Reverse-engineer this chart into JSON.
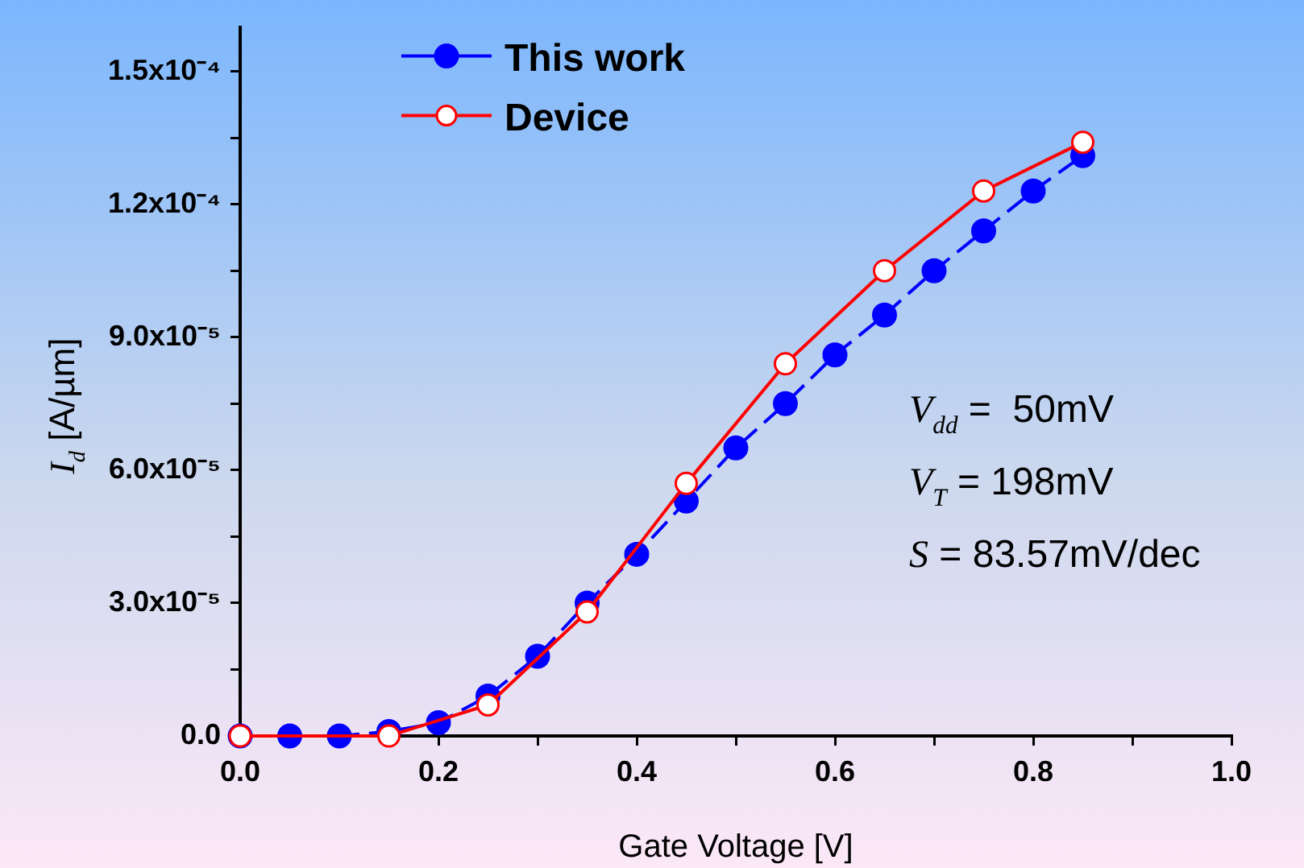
{
  "chart_data": {
    "type": "line",
    "xlabel": "Gate Voltage [V]",
    "ylabel": "I$_{d}$ [A/µm]",
    "xlim": [
      0,
      1
    ],
    "xticks": [
      {
        "value": 0,
        "label": "0.0"
      },
      {
        "value": 0.1,
        "label": null
      },
      {
        "value": 0.2,
        "label": "0.2"
      },
      {
        "value": 0.3,
        "label": null
      },
      {
        "value": 0.4,
        "label": "0.4"
      },
      {
        "value": 0.5,
        "label": null
      },
      {
        "value": 0.6,
        "label": "0.6"
      },
      {
        "value": 0.7,
        "label": null
      },
      {
        "value": 0.8,
        "label": "0.8"
      },
      {
        "value": 0.9,
        "label": null
      },
      {
        "value": 1,
        "label": "1.0"
      }
    ],
    "ylim": [
      0,
      0.00016
    ],
    "yticks": [
      {
        "value": 0,
        "label": "0.0"
      },
      {
        "value": 1.5e-05,
        "label": null
      },
      {
        "value": 3e-05,
        "label": "3.0x10⁻⁵"
      },
      {
        "value": 4.5e-05,
        "label": null
      },
      {
        "value": 6e-05,
        "label": "6.0x10⁻⁵"
      },
      {
        "value": 7.5e-05,
        "label": null
      },
      {
        "value": 9e-05,
        "label": "9.0x10⁻⁵"
      },
      {
        "value": 0.000105,
        "label": null
      },
      {
        "value": 0.00012,
        "label": "1.2x10⁻⁴"
      },
      {
        "value": 0.000135,
        "label": null
      },
      {
        "value": 0.00015,
        "label": "1.5x10⁻⁴"
      }
    ],
    "series": [
      {
        "name": "This work",
        "color": "#0000ff",
        "line_style": "dashed",
        "x": [
          0,
          0.05,
          0.1,
          0.15,
          0.2,
          0.25,
          0.3,
          0.35,
          0.4,
          0.45,
          0.5,
          0.55,
          0.6,
          0.65,
          0.7,
          0.75,
          0.8,
          0.85
        ],
        "values": [
          0,
          0,
          0,
          1e-06,
          3e-06,
          9e-06,
          1.8e-05,
          3e-05,
          4.1e-05,
          5.3e-05,
          6.5e-05,
          7.5e-05,
          8.6e-05,
          9.5e-05,
          0.000105,
          0.000114,
          0.000123,
          0.000131
        ]
      },
      {
        "name": "Device",
        "color": "#ff0000",
        "line_style": "solid",
        "x": [
          0,
          0.15,
          0.25,
          0.35,
          0.45,
          0.55,
          0.65,
          0.75,
          0.85
        ],
        "values": [
          0,
          0,
          7e-06,
          2.8e-05,
          5.7e-05,
          8.4e-05,
          0.000105,
          0.000123,
          0.000134
        ]
      }
    ],
    "marker": "circle",
    "grid": false,
    "legend": "top left",
    "annotations": [
      "V$_{dd}$ =  50mV",
      "V$_{T}$ = 198mV",
      "S = 83.57mV/dec"
    ]
  }
}
